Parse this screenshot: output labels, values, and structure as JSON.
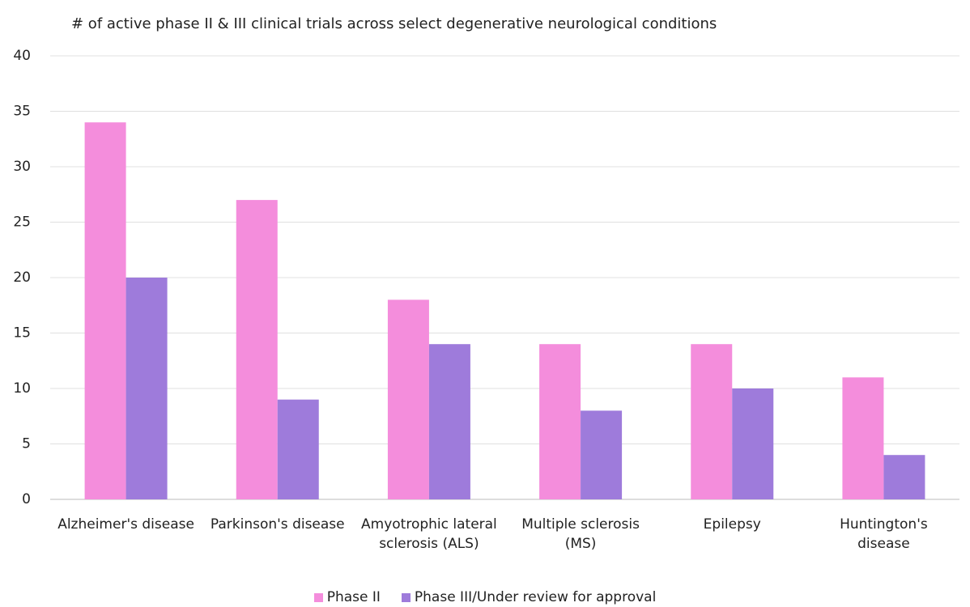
{
  "chart_data": {
    "type": "bar",
    "title": "# of active phase II & III clinical trials across select degenerative neurological conditions",
    "categories": [
      "Alzheimer's disease",
      "Parkinson's disease",
      "Amyotrophic lateral sclerosis (ALS)",
      "Multiple sclerosis (MS)",
      "Epilepsy",
      "Huntington's disease"
    ],
    "series": [
      {
        "name": "Phase II",
        "color": "#f48ddc",
        "values": [
          34,
          27,
          18,
          14,
          14,
          11
        ]
      },
      {
        "name": "Phase III/Under review for approval",
        "color": "#9e7bdb",
        "values": [
          20,
          9,
          14,
          8,
          10,
          4
        ]
      }
    ],
    "ylim": [
      0,
      40
    ],
    "yticks": [
      0,
      5,
      10,
      15,
      20,
      25,
      30,
      35,
      40
    ],
    "grid": true,
    "legend": "bottom"
  }
}
